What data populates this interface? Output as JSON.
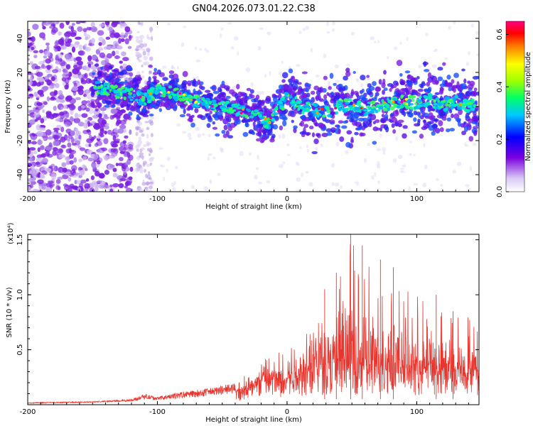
{
  "figure": {
    "title": "GN04.2026.073.01.22.C38"
  },
  "chart_data": [
    {
      "type": "heatmap",
      "title": "GN04.2026.073.01.22.C38",
      "xlabel": "Height of straight line (km)",
      "ylabel": "Frequency (Hz)",
      "xlim": [
        -200,
        148
      ],
      "ylim": [
        -50,
        50
      ],
      "xticks": [
        -200,
        -100,
        0,
        100
      ],
      "yticks": [
        -40,
        -20,
        0,
        20,
        40
      ],
      "colorbar": {
        "label": "Normalized spectral amplitude",
        "range": [
          0.0,
          0.65
        ],
        "ticks": [
          0.0,
          0.2,
          0.4,
          0.6
        ]
      },
      "ridge": {
        "x": [
          -150,
          -140,
          -130,
          -120,
          -110,
          -100,
          -90,
          -80,
          -70,
          -60,
          -50,
          -40,
          -30,
          -20,
          -15,
          -10,
          -5,
          0,
          5,
          10,
          20,
          30,
          40,
          50,
          60,
          70,
          80,
          90,
          100,
          110,
          120,
          130,
          140,
          148
        ],
        "y": [
          12,
          10,
          8,
          7,
          4,
          9,
          8,
          6,
          3,
          1,
          0,
          -2,
          -3,
          -6,
          -10,
          -5,
          0,
          5,
          3,
          0,
          -2,
          -3,
          0,
          1,
          -2,
          0,
          2,
          3,
          2,
          4,
          1,
          3,
          0,
          2
        ]
      }
    },
    {
      "type": "line",
      "xlabel": "Height of straight line (km)",
      "ylabel": "SNR (10 * v/v)",
      "scale_label": "(x10⁴)",
      "xlim": [
        -200,
        148
      ],
      "ylim": [
        0,
        1.55
      ],
      "xticks": [
        -200,
        -100,
        0,
        100
      ],
      "yticks": [
        0.5,
        1.0,
        1.5
      ],
      "ytick_labels": [
        "0.5",
        "1.0",
        "1.5"
      ],
      "color": "#e8352e",
      "envelope": {
        "x": [
          -200,
          -150,
          -120,
          -110,
          -100,
          -80,
          -60,
          -40,
          -30,
          -20,
          -10,
          0,
          10,
          20,
          30,
          40,
          50,
          60,
          70,
          80,
          90,
          100,
          110,
          120,
          130,
          140,
          148
        ],
        "base": [
          0.01,
          0.02,
          0.03,
          0.05,
          0.04,
          0.06,
          0.08,
          0.1,
          0.12,
          0.2,
          0.2,
          0.2,
          0.25,
          0.3,
          0.3,
          0.3,
          0.3,
          0.3,
          0.3,
          0.3,
          0.28,
          0.28,
          0.27,
          0.27,
          0.27,
          0.26,
          0.26
        ],
        "peak": [
          0.02,
          0.03,
          0.05,
          0.1,
          0.07,
          0.12,
          0.15,
          0.2,
          0.3,
          0.4,
          0.5,
          0.5,
          0.75,
          1.0,
          1.05,
          1.15,
          1.55,
          1.45,
          1.1,
          1.3,
          1.05,
          1.0,
          1.0,
          0.85,
          0.9,
          0.8,
          0.7
        ]
      },
      "peaks": [
        {
          "x": 49,
          "y": 1.55
        },
        {
          "x": 58,
          "y": 1.45
        },
        {
          "x": 38,
          "y": 1.2
        },
        {
          "x": 72,
          "y": 1.32
        },
        {
          "x": 29,
          "y": 1.05
        },
        {
          "x": 82,
          "y": 1.25
        },
        {
          "x": 115,
          "y": 1.0
        },
        {
          "x": 128,
          "y": 0.85
        }
      ]
    }
  ]
}
